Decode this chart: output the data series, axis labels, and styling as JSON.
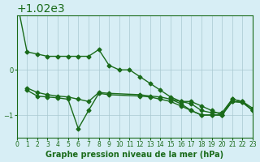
{
  "title": "Graphe pression niveau de la mer (hPa)",
  "bg_color": "#d7eef5",
  "line_color": "#1a6b1a",
  "grid_color": "#a8c8d0",
  "ylim": [
    1018.5,
    1021.2
  ],
  "xlim": [
    0,
    23
  ],
  "yticks": [
    1019,
    1020
  ],
  "xticks": [
    0,
    1,
    2,
    3,
    4,
    5,
    6,
    7,
    8,
    9,
    10,
    11,
    12,
    13,
    14,
    15,
    16,
    17,
    18,
    19,
    20,
    21,
    22,
    23
  ],
  "series": [
    [
      1021.55,
      1020.4,
      1020.35,
      1020.3,
      1020.3,
      1020.3,
      1020.3,
      1020.3,
      1020.45,
      1020.1,
      1020.0,
      1020.0,
      1019.85,
      1019.7,
      1019.55,
      1019.4,
      1019.3,
      1019.3,
      1019.2,
      1019.1,
      1019.0,
      1019.35,
      1019.3,
      1019.1
    ],
    [
      null,
      1019.6,
      1019.5,
      1019.45,
      1019.42,
      1019.4,
      1019.35,
      1019.3,
      1019.5,
      1019.48,
      null,
      null,
      1019.45,
      1019.42,
      1019.4,
      1019.35,
      1019.3,
      1019.25,
      1019.1,
      1019.05,
      1019.05,
      1019.35,
      1019.3,
      1019.15
    ],
    [
      null,
      1019.55,
      1019.42,
      1019.4,
      1019.38,
      1019.35,
      1018.7,
      1019.1,
      1019.48,
      1019.45,
      null,
      null,
      1019.42,
      1019.4,
      1019.35,
      1019.3,
      1019.2,
      1019.1,
      1019.0,
      1019.0,
      1019.0,
      1019.3,
      1019.28,
      1019.1
    ],
    [
      null,
      null,
      null,
      null,
      null,
      null,
      null,
      null,
      null,
      null,
      null,
      null,
      null,
      null,
      null,
      1019.35,
      1019.25,
      1019.1,
      1019.0,
      1019.0,
      1019.0,
      1019.3,
      1019.28,
      1019.1
    ]
  ],
  "marker": "D",
  "marker_size": 2.5,
  "line_width": 1.0,
  "xlabel_fontsize": 7,
  "ylabel_fontsize": 7,
  "title_fontsize": 7
}
